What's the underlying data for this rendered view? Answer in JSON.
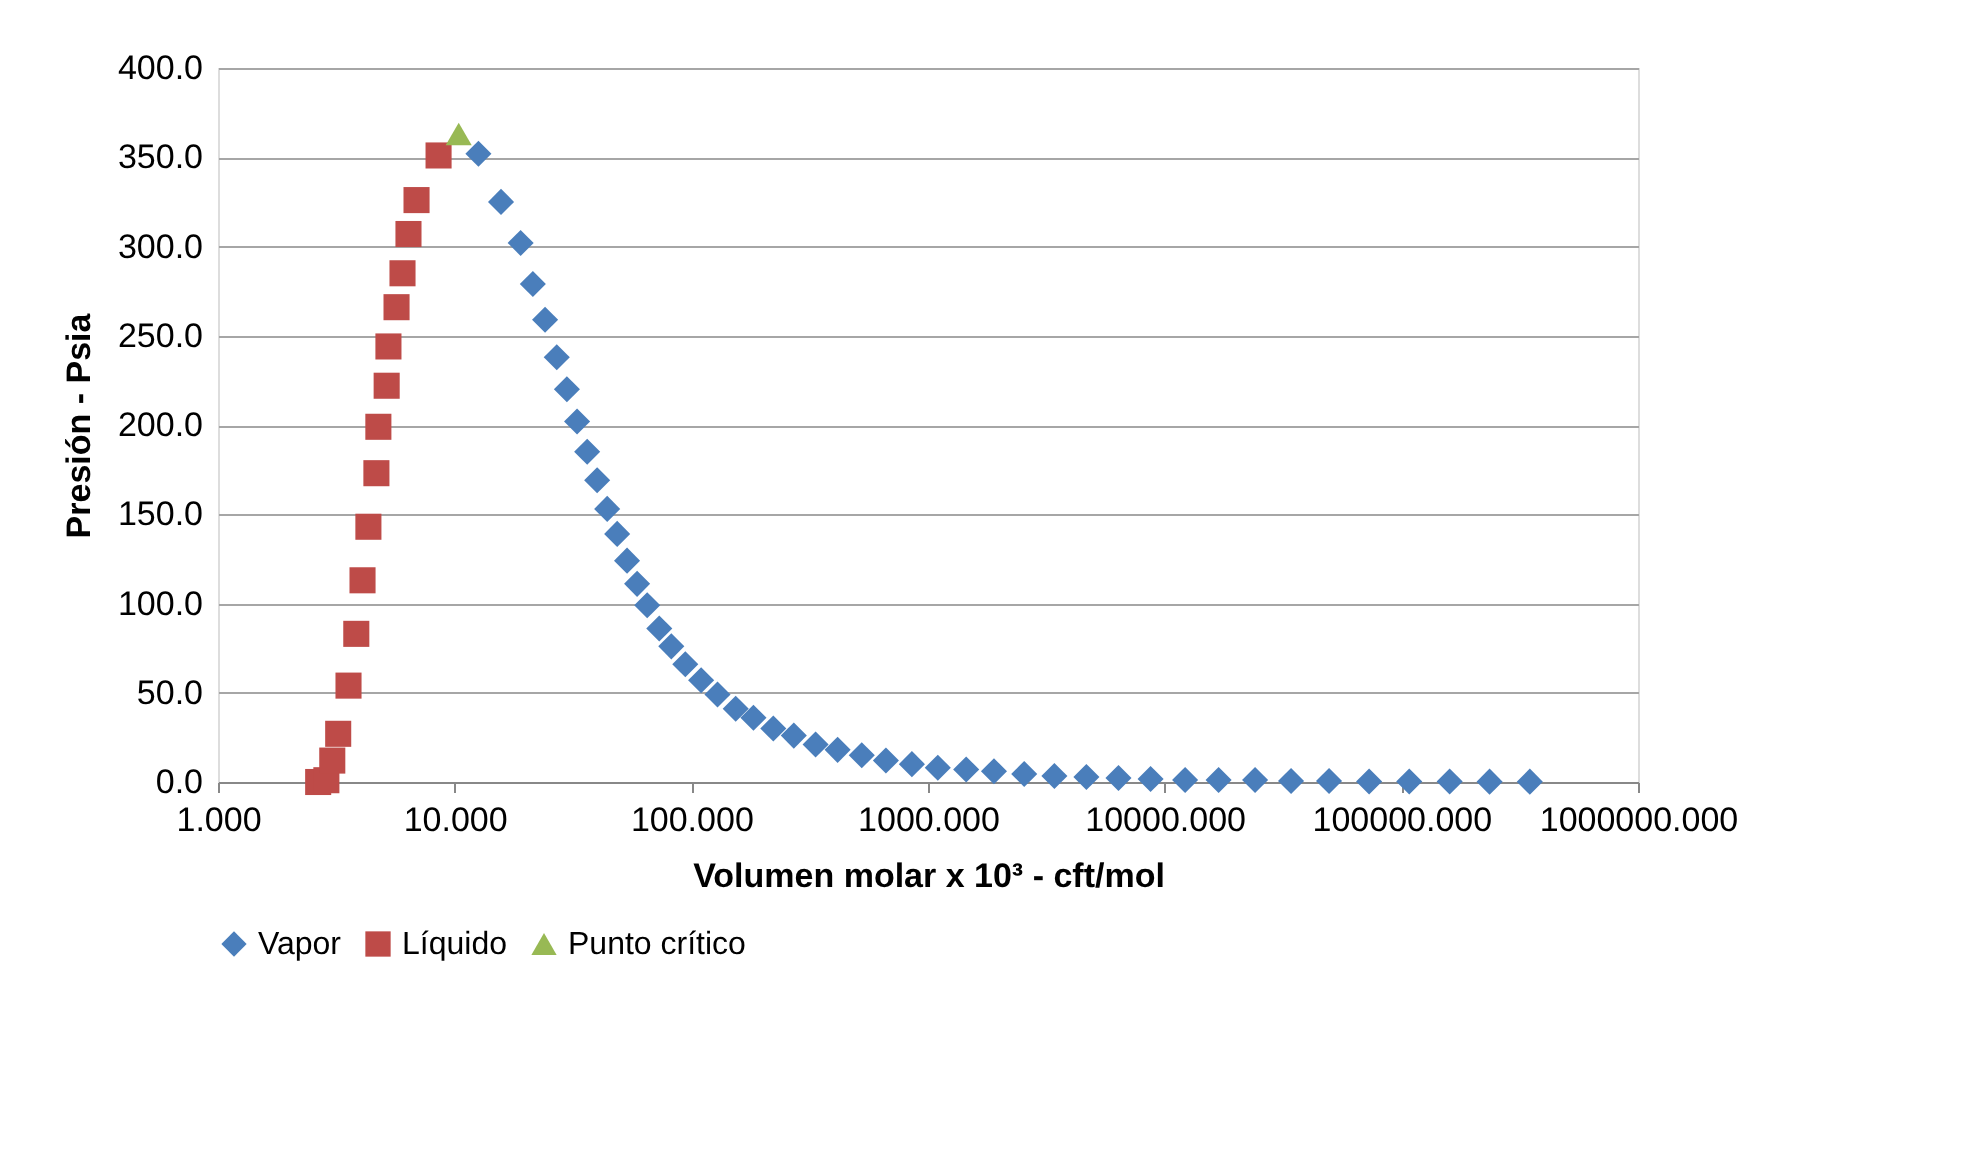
{
  "chart_data": {
    "type": "scatter",
    "xlabel": "Volumen molar x 10³ - cft/mol",
    "ylabel": "Presión - Psia",
    "log": "x",
    "xlim": [
      1,
      1000000
    ],
    "xticks": [
      {
        "value": 1,
        "label": "1.000"
      },
      {
        "value": 10,
        "label": "10.000"
      },
      {
        "value": 100,
        "label": "100.000"
      },
      {
        "value": 1000,
        "label": "1000.000"
      },
      {
        "value": 10000,
        "label": "10000.000"
      },
      {
        "value": 100000,
        "label": "100000.000"
      },
      {
        "value": 1000000,
        "label": "1000000.000"
      }
    ],
    "ylim": [
      0,
      400
    ],
    "yticks": [
      {
        "value": 0,
        "label": "0.0"
      },
      {
        "value": 50,
        "label": "50.0"
      },
      {
        "value": 100,
        "label": "100.0"
      },
      {
        "value": 150,
        "label": "150.0"
      },
      {
        "value": 200,
        "label": "200.0"
      },
      {
        "value": 250,
        "label": "250.0"
      },
      {
        "value": 300,
        "label": "300.0"
      },
      {
        "value": 350,
        "label": "350.0"
      },
      {
        "value": 400,
        "label": "400.0"
      }
    ],
    "grid": "y",
    "legend": "bottom",
    "series": [
      {
        "name": "Vapor",
        "color": "#4a7ebb",
        "marker": "diamond",
        "x": [
          12.6,
          15.7,
          19.0,
          21.4,
          24.1,
          27.0,
          29.8,
          32.9,
          36.3,
          40.0,
          44.1,
          48.6,
          53.5,
          59.0,
          65.1,
          73.2,
          82.3,
          94.3,
          110,
          129,
          154,
          183,
          222,
          271,
          335,
          415,
          525,
          664,
          855,
          1100,
          1450,
          1900,
          2550,
          3420,
          4670,
          6380,
          8720,
          12200,
          16900,
          24100,
          34200,
          49500,
          73100,
          108000,
          160000,
          236000,
          349000
        ],
        "values": [
          352,
          325,
          302,
          279,
          259,
          238,
          220,
          202,
          185,
          169,
          153,
          139,
          124,
          111,
          99,
          86,
          76,
          66,
          57,
          49,
          41,
          36,
          30,
          26,
          21,
          18,
          15,
          12,
          10,
          8,
          7,
          6,
          4.5,
          3.4,
          2.8,
          2.2,
          1.7,
          1.1,
          1.1,
          1.1,
          0.6,
          0.6,
          0.3,
          0.3,
          0.3,
          0.2,
          0.2
        ]
      },
      {
        "name": "Líquido",
        "color": "#be4b48",
        "marker": "square",
        "x": [
          2.65,
          2.87,
          3.04,
          3.22,
          3.56,
          3.84,
          4.08,
          4.32,
          4.67,
          4.76,
          5.16,
          5.25,
          5.68,
          6.02,
          6.38,
          6.9,
          8.55
        ],
        "values": [
          0,
          1,
          12,
          27,
          54,
          83,
          113,
          143,
          173,
          199,
          222,
          244,
          266,
          285,
          307,
          326,
          351
        ]
      },
      {
        "name": "Punto crítico",
        "color": "#98b954",
        "marker": "triangle",
        "x": [
          10.4
        ],
        "values": [
          363
        ]
      }
    ]
  }
}
